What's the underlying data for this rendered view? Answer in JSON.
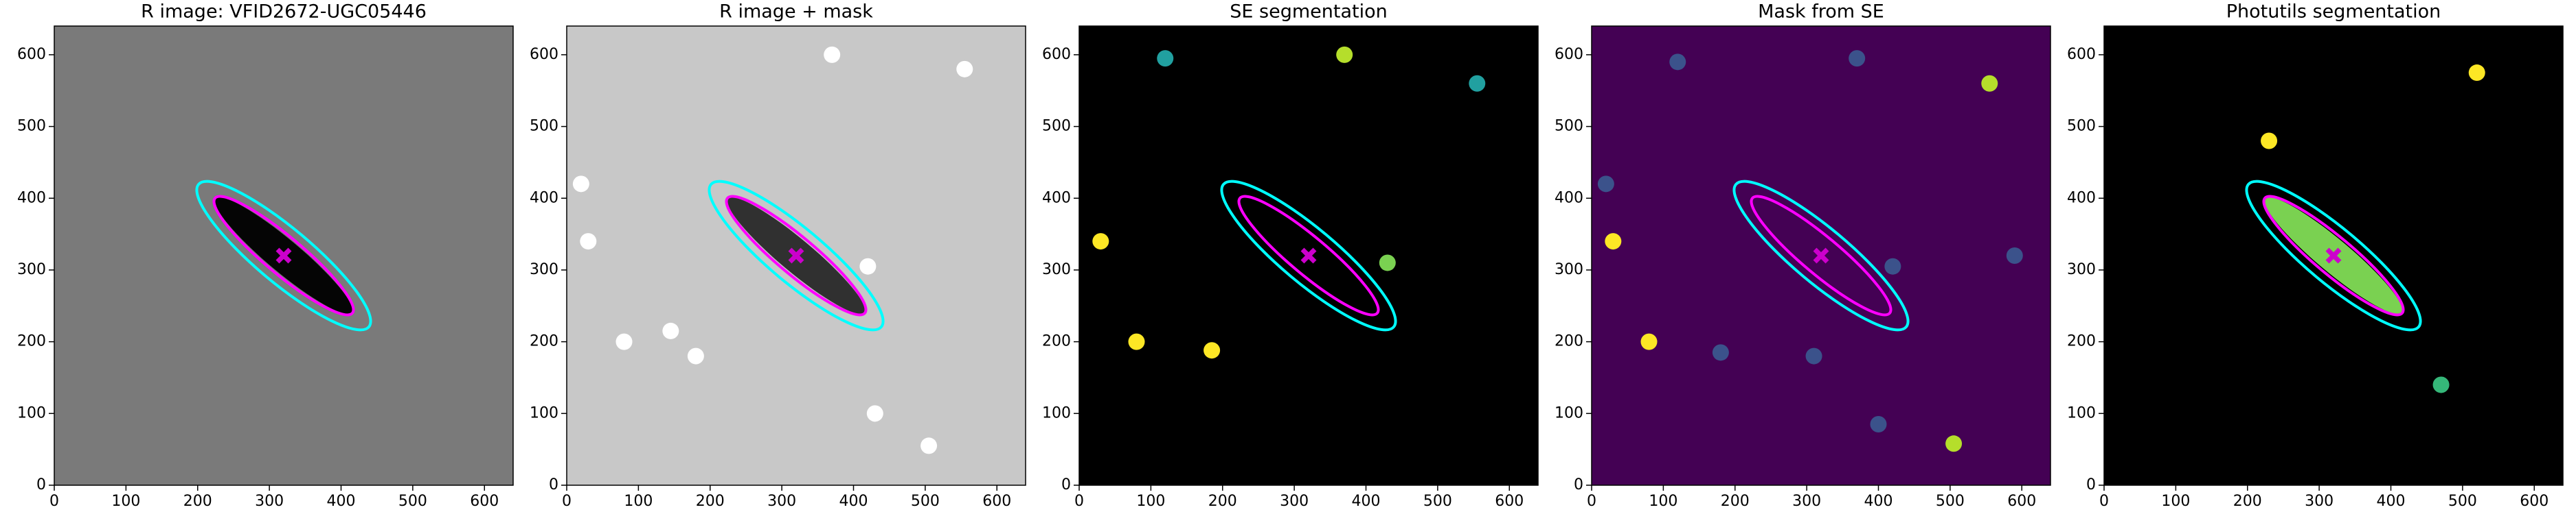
{
  "chart_data": [
    {
      "type": "image",
      "title": "R image: VFID2672-UGC05446",
      "background": "#7a7a7a",
      "xlim": [
        0,
        640
      ],
      "ylim": [
        0,
        640
      ],
      "xticks": [
        0,
        100,
        200,
        300,
        400,
        500,
        600
      ],
      "yticks": [
        0,
        100,
        200,
        300,
        400,
        500,
        600
      ],
      "ellipses": [
        {
          "color": "#00ffff",
          "x": 320,
          "y": 320,
          "a": 155,
          "b": 38,
          "angle": -40
        },
        {
          "color": "#ff00ff",
          "x": 320,
          "y": 320,
          "a": 125,
          "b": 26,
          "angle": -40
        }
      ],
      "markers": [
        {
          "color": "#cc00cc",
          "x": 320,
          "y": 320
        }
      ]
    },
    {
      "type": "image",
      "title": "R image + mask",
      "background": "#c8c8c8",
      "xlim": [
        0,
        640
      ],
      "ylim": [
        0,
        640
      ],
      "xticks": [
        0,
        100,
        200,
        300,
        400,
        500,
        600
      ],
      "yticks": [
        0,
        100,
        200,
        300,
        400,
        500,
        600
      ],
      "ellipses": [
        {
          "color": "#00ffff",
          "x": 320,
          "y": 320,
          "a": 155,
          "b": 38,
          "angle": -40
        },
        {
          "color": "#ff00ff",
          "x": 320,
          "y": 320,
          "a": 125,
          "b": 26,
          "angle": -40
        }
      ],
      "markers": [
        {
          "color": "#cc00cc",
          "x": 320,
          "y": 320
        }
      ]
    },
    {
      "type": "image",
      "title": "SE segmentation",
      "background": "#000000",
      "xlim": [
        0,
        640
      ],
      "ylim": [
        0,
        640
      ],
      "xticks": [
        0,
        100,
        200,
        300,
        400,
        500,
        600
      ],
      "yticks": [
        0,
        100,
        200,
        300,
        400,
        500,
        600
      ],
      "ellipses": [
        {
          "color": "#00ffff",
          "x": 320,
          "y": 320,
          "a": 155,
          "b": 38,
          "angle": -40
        },
        {
          "color": "#ff00ff",
          "x": 320,
          "y": 320,
          "a": 125,
          "b": 26,
          "angle": -40
        }
      ],
      "markers": [
        {
          "color": "#cc00cc",
          "x": 320,
          "y": 320
        }
      ]
    },
    {
      "type": "image",
      "title": "Mask from SE",
      "background": "#440154",
      "xlim": [
        0,
        640
      ],
      "ylim": [
        0,
        640
      ],
      "xticks": [
        0,
        100,
        200,
        300,
        400,
        500,
        600
      ],
      "yticks": [
        0,
        100,
        200,
        300,
        400,
        500,
        600
      ],
      "ellipses": [
        {
          "color": "#00ffff",
          "x": 320,
          "y": 320,
          "a": 155,
          "b": 38,
          "angle": -40
        },
        {
          "color": "#ff00ff",
          "x": 320,
          "y": 320,
          "a": 125,
          "b": 26,
          "angle": -40
        }
      ],
      "markers": [
        {
          "color": "#cc00cc",
          "x": 320,
          "y": 320
        }
      ]
    },
    {
      "type": "image",
      "title": "Photutils segmentation",
      "background": "#000000",
      "xlim": [
        0,
        640
      ],
      "ylim": [
        0,
        640
      ],
      "xticks": [
        0,
        100,
        200,
        300,
        400,
        500,
        600
      ],
      "yticks": [
        0,
        100,
        200,
        300,
        400,
        500,
        600
      ],
      "ellipses": [
        {
          "color": "#00ffff",
          "x": 320,
          "y": 320,
          "a": 155,
          "b": 38,
          "angle": -40
        },
        {
          "color": "#ff00ff",
          "x": 320,
          "y": 320,
          "a": 125,
          "b": 26,
          "angle": -40
        }
      ],
      "markers": [
        {
          "color": "#cc00cc",
          "x": 320,
          "y": 320
        }
      ]
    }
  ]
}
